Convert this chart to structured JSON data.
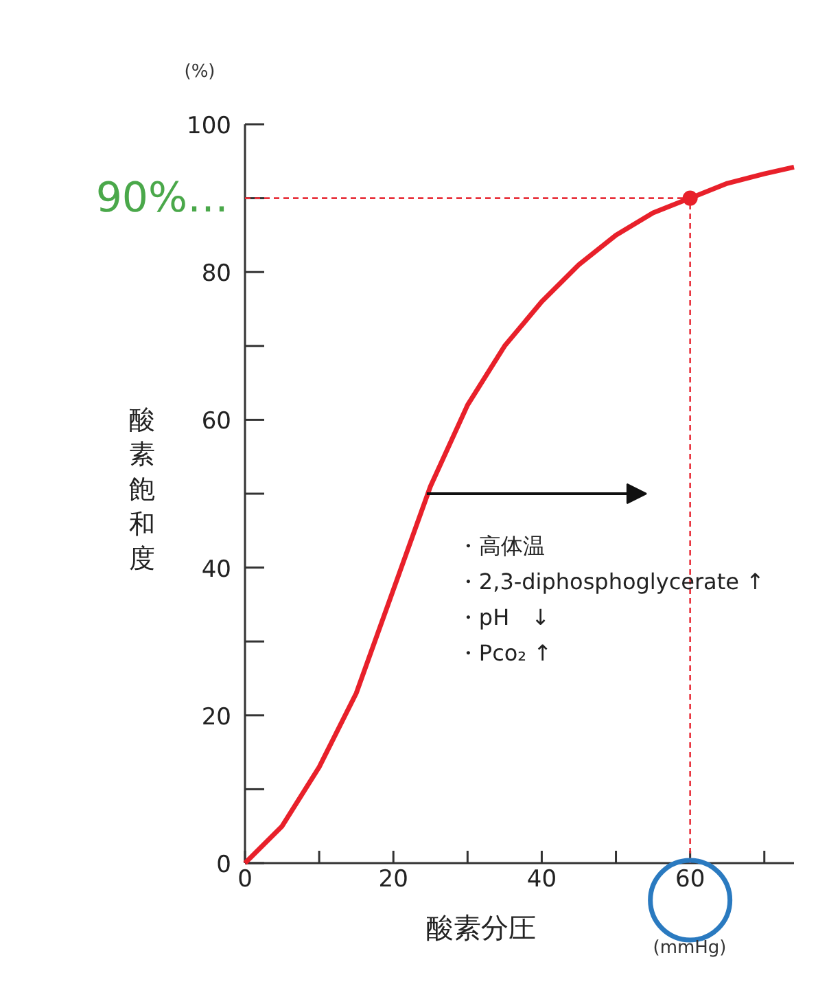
{
  "chart_data": {
    "type": "line",
    "xlabel": "酸素分圧",
    "ylabel": "酸素飽和度",
    "x": [
      0,
      5,
      10,
      15,
      20,
      25,
      30,
      35,
      40,
      45,
      50,
      55,
      60,
      65,
      70,
      74
    ],
    "series": [
      {
        "color": "#e8202a",
        "values": [
          0,
          5,
          13,
          23,
          37,
          51,
          62,
          70,
          76,
          81,
          85,
          88,
          90,
          92,
          93.3,
          94.2
        ]
      },
      {
        "type": "scatter",
        "marker": "circle",
        "color": "#e8202a",
        "x": [
          60
        ],
        "values": [
          90
        ]
      }
    ],
    "xlim": [
      0,
      74
    ],
    "ylim": [
      0,
      100
    ],
    "xticks": [
      0,
      {
        "value": 10,
        "label": null
      },
      20,
      {
        "value": 30,
        "label": null
      },
      40,
      {
        "value": 50,
        "label": null
      },
      60,
      {
        "value": 70,
        "label": null
      }
    ],
    "yticks": [
      0,
      {
        "value": 10,
        "label": null
      },
      20,
      {
        "value": 30,
        "label": null
      },
      40,
      {
        "value": 50,
        "label": null
      },
      60,
      {
        "value": 70,
        "label": null
      },
      80,
      {
        "value": 90,
        "label": null
      },
      100
    ],
    "ref_lines": [
      {
        "axis": "y",
        "value": 90,
        "label": "90%…",
        "color": "#e8303a",
        "line_style": "dashed"
      },
      {
        "axis": "x",
        "value": 60,
        "color": "#e8303a",
        "line_style": "dashed"
      }
    ],
    "annotations": [
      {
        "text": "・高体温",
        "x": 24.5,
        "y": 50
      },
      "・2,3-diphosphoglycerate ↑",
      "・pH　↓",
      "・Pco₂ ↑",
      "(%)",
      "(mmHg)"
    ],
    "grid": false,
    "line_style": "solid"
  }
}
